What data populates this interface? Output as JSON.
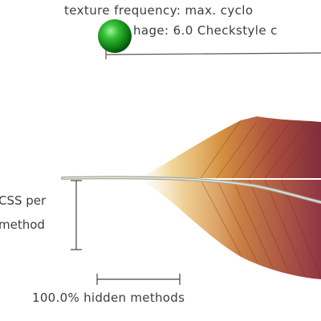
{
  "legend": {
    "line1": "texture frequency: max. cyclo",
    "line2": "hage: 6.0 Checkstyle c"
  },
  "scale_labels": {
    "vertical_line1": "CSS per",
    "vertical_line2": "method",
    "horizontal": "100.0% hidden methods"
  },
  "colors": {
    "feather_dark": "#8a2a3a",
    "feather_mid": "#c46a2a",
    "feather_light": "#e8b84a",
    "quill": "#9a9a8c",
    "marker": "#1fa01f",
    "ink": "#3d3d3d"
  },
  "icons": {
    "marker": "green-sphere-icon"
  }
}
